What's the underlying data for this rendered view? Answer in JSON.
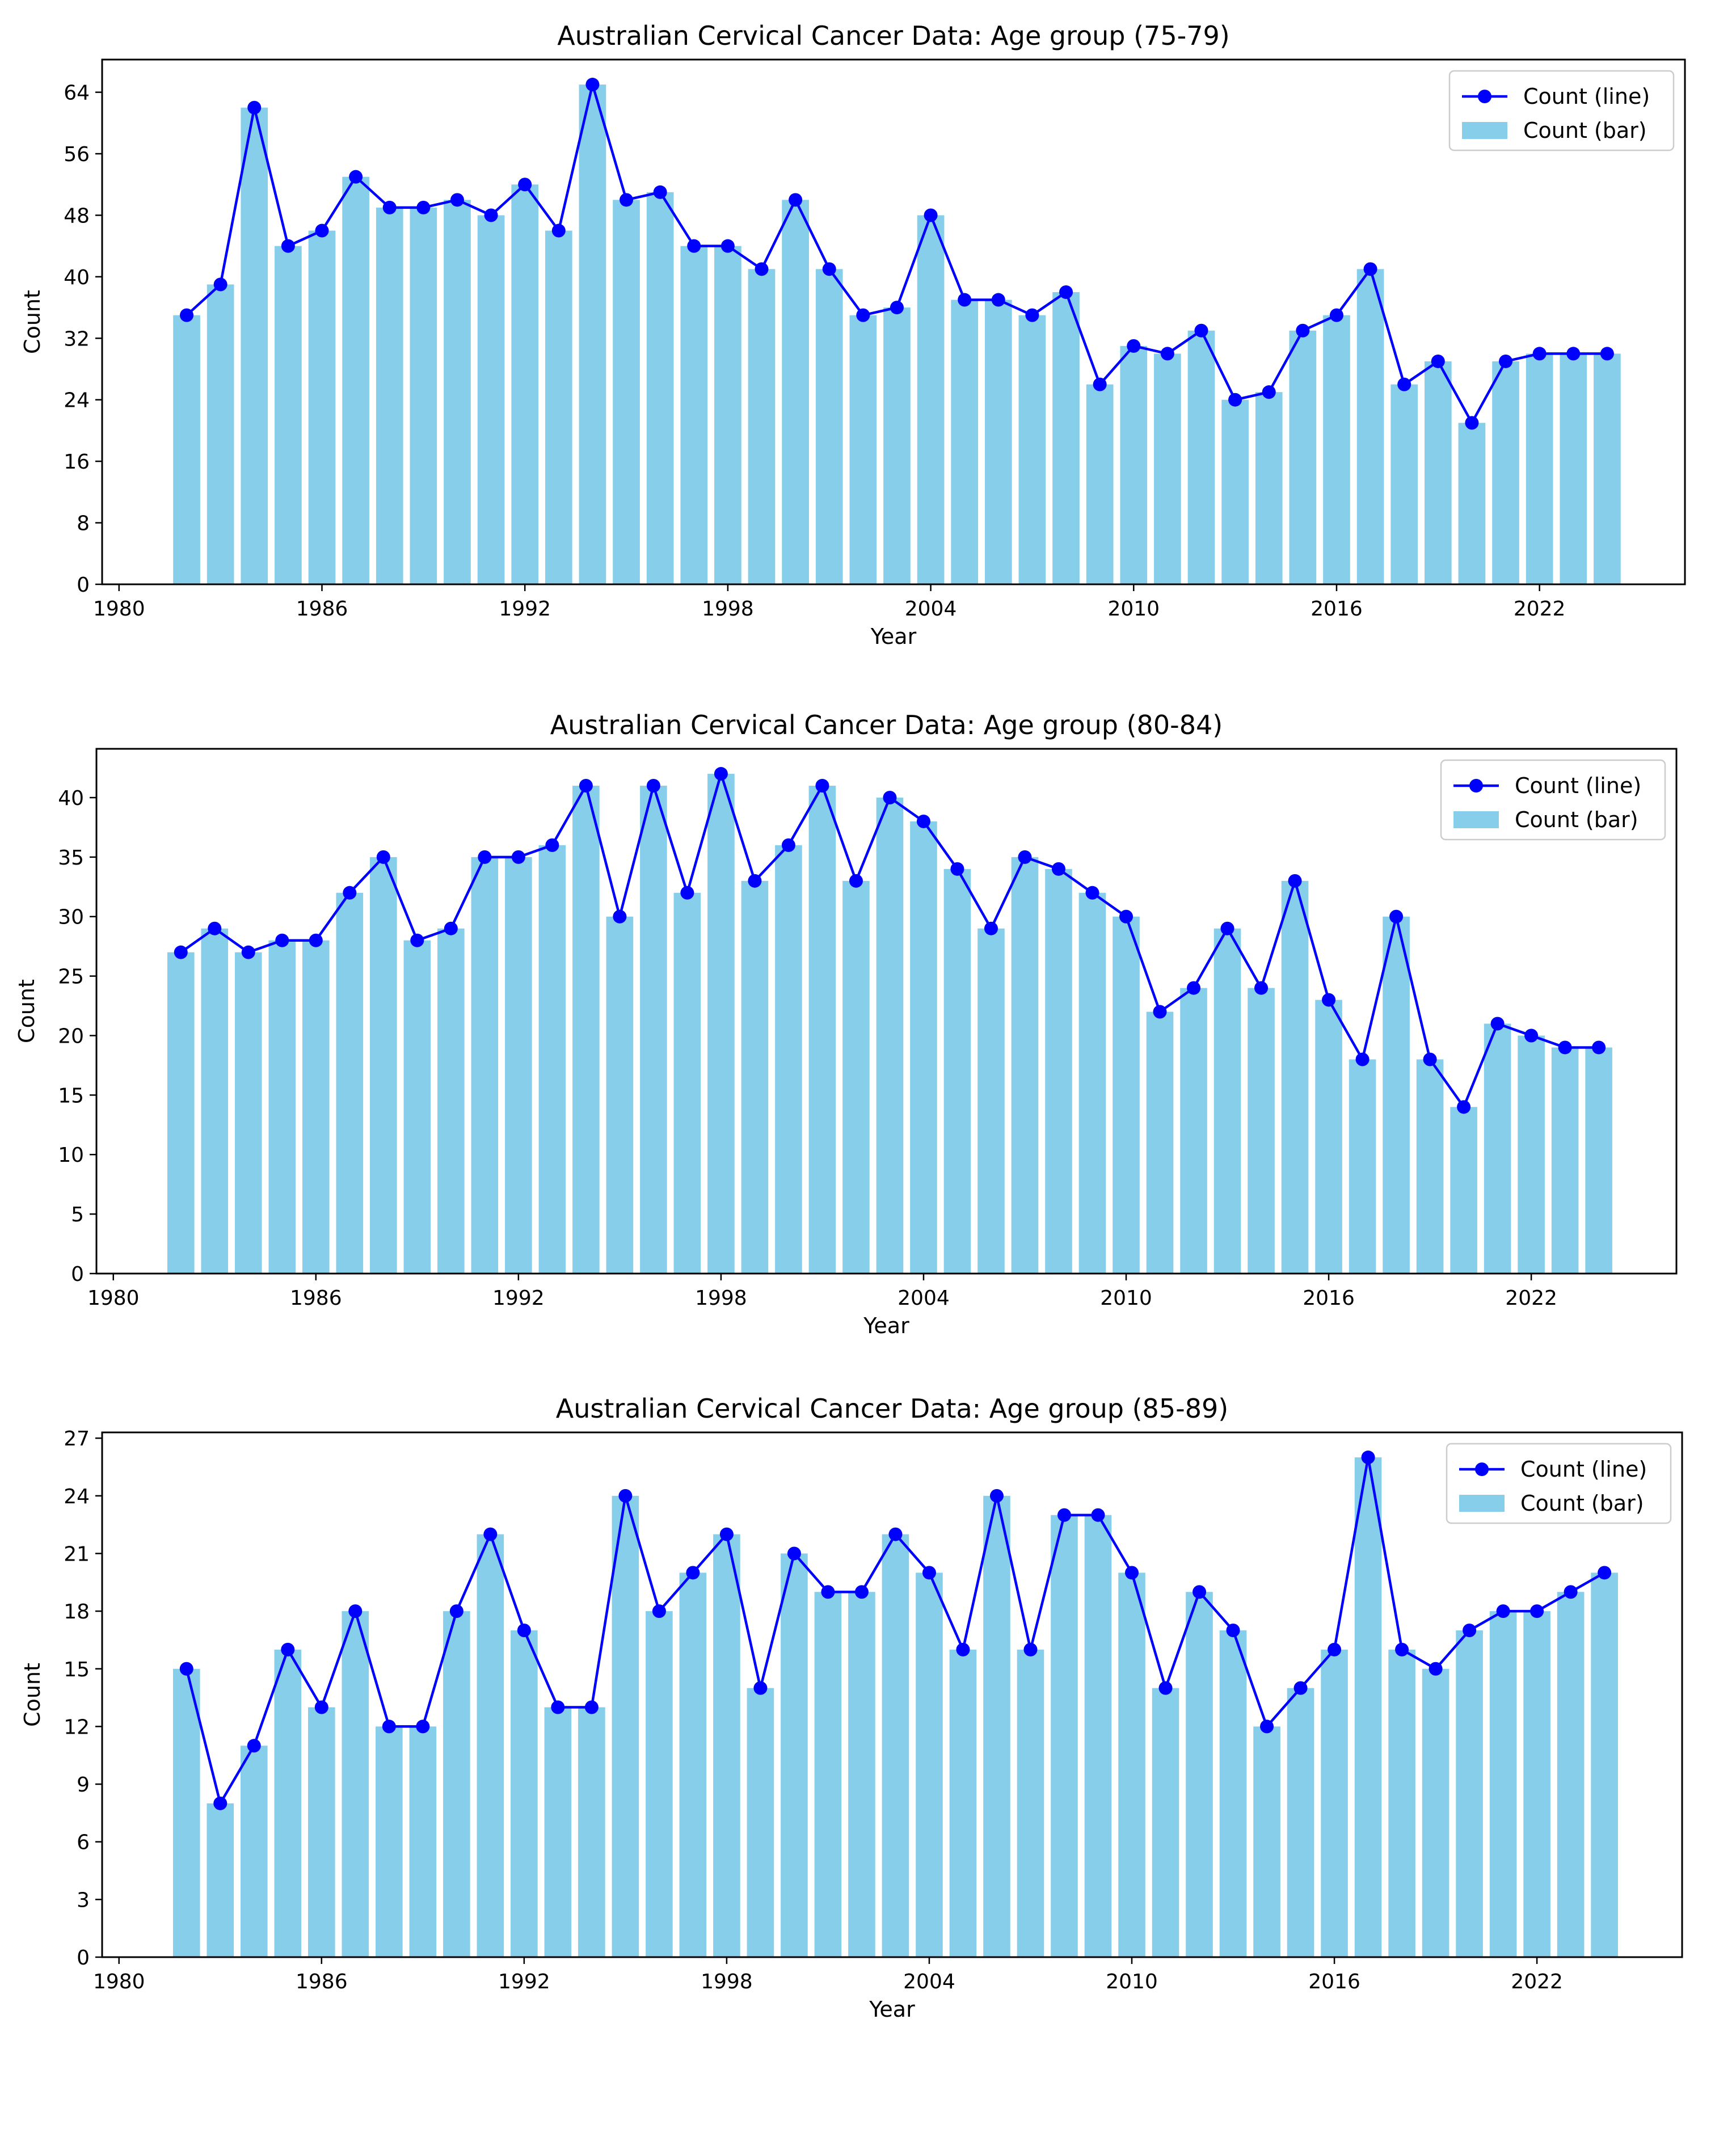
{
  "chart_data": [
    {
      "type": "bar+line",
      "title": "Australian Cervical Cancer Data: Age group (75-79)",
      "xlabel": "Year",
      "ylabel": "Count",
      "x": [
        1982,
        1983,
        1984,
        1985,
        1986,
        1987,
        1988,
        1989,
        1990,
        1991,
        1992,
        1993,
        1994,
        1995,
        1996,
        1997,
        1998,
        1999,
        2000,
        2001,
        2002,
        2003,
        2004,
        2005,
        2006,
        2007,
        2008,
        2009,
        2010,
        2011,
        2012,
        2013,
        2014,
        2015,
        2016,
        2017,
        2018,
        2019,
        2020,
        2021,
        2022,
        2023,
        2024
      ],
      "values": [
        35,
        39,
        62,
        44,
        46,
        53,
        49,
        49,
        50,
        48,
        52,
        46,
        65,
        50,
        51,
        44,
        44,
        41,
        50,
        41,
        35,
        36,
        48,
        37,
        37,
        35,
        38,
        26,
        31,
        30,
        33,
        24,
        25,
        33,
        35,
        41,
        26,
        29,
        21,
        29,
        30,
        30,
        30
      ],
      "xticks": [
        1980,
        1986,
        1992,
        1998,
        2004,
        2010,
        2016,
        2022
      ],
      "yticks": [
        0,
        8,
        16,
        24,
        32,
        40,
        48,
        56,
        64
      ],
      "xlim": [
        1979.5,
        2026.3
      ],
      "ylim": [
        0,
        68.25
      ],
      "legend": {
        "position": "upper right",
        "entries": [
          "Count (line)",
          "Count (bar)"
        ]
      },
      "grid": false
    },
    {
      "type": "bar+line",
      "title": "Australian Cervical Cancer Data: Age group (80-84)",
      "xlabel": "Year",
      "ylabel": "Count",
      "x": [
        1982,
        1983,
        1984,
        1985,
        1986,
        1987,
        1988,
        1989,
        1990,
        1991,
        1992,
        1993,
        1994,
        1995,
        1996,
        1997,
        1998,
        1999,
        2000,
        2001,
        2002,
        2003,
        2004,
        2005,
        2006,
        2007,
        2008,
        2009,
        2010,
        2011,
        2012,
        2013,
        2014,
        2015,
        2016,
        2017,
        2018,
        2019,
        2020,
        2021,
        2022,
        2023,
        2024
      ],
      "values": [
        27,
        29,
        27,
        28,
        28,
        32,
        35,
        28,
        29,
        35,
        35,
        36,
        41,
        30,
        41,
        32,
        42,
        33,
        36,
        41,
        33,
        40,
        38,
        34,
        29,
        35,
        34,
        32,
        30,
        22,
        24,
        29,
        24,
        33,
        23,
        18,
        30,
        18,
        14,
        21,
        20,
        19,
        19
      ],
      "xticks": [
        1980,
        1986,
        1992,
        1998,
        2004,
        2010,
        2016,
        2022
      ],
      "yticks": [
        0,
        5,
        10,
        15,
        20,
        25,
        30,
        35,
        40
      ],
      "xlim": [
        1979.5,
        2026.3
      ],
      "ylim": [
        0,
        44.1
      ],
      "legend": {
        "position": "upper right",
        "entries": [
          "Count (line)",
          "Count (bar)"
        ]
      },
      "grid": false
    },
    {
      "type": "bar+line",
      "title": "Australian Cervical Cancer Data: Age group (85-89)",
      "xlabel": "Year",
      "ylabel": "Count",
      "x": [
        1982,
        1983,
        1984,
        1985,
        1986,
        1987,
        1988,
        1989,
        1990,
        1991,
        1992,
        1993,
        1994,
        1995,
        1996,
        1997,
        1998,
        1999,
        2000,
        2001,
        2002,
        2003,
        2004,
        2005,
        2006,
        2007,
        2008,
        2009,
        2010,
        2011,
        2012,
        2013,
        2014,
        2015,
        2016,
        2017,
        2018,
        2019,
        2020,
        2021,
        2022,
        2023,
        2024
      ],
      "values": [
        15,
        8,
        11,
        16,
        13,
        18,
        12,
        12,
        18,
        22,
        17,
        13,
        13,
        24,
        18,
        20,
        22,
        14,
        21,
        19,
        19,
        22,
        20,
        16,
        24,
        16,
        23,
        23,
        20,
        14,
        19,
        17,
        12,
        14,
        16,
        26,
        16,
        15,
        17,
        18,
        18,
        19,
        20
      ],
      "xticks": [
        1980,
        1986,
        1992,
        1998,
        2004,
        2010,
        2016,
        2022
      ],
      "yticks": [
        0,
        3,
        6,
        9,
        12,
        15,
        18,
        21,
        24,
        27
      ],
      "xlim": [
        1979.5,
        2026.3
      ],
      "ylim": [
        0,
        27.3
      ],
      "legend": {
        "position": "upper right",
        "entries": [
          "Count (line)",
          "Count (bar)"
        ]
      },
      "grid": false
    }
  ],
  "colors": {
    "bar": "#87CEEB",
    "line": "#0000FF"
  }
}
